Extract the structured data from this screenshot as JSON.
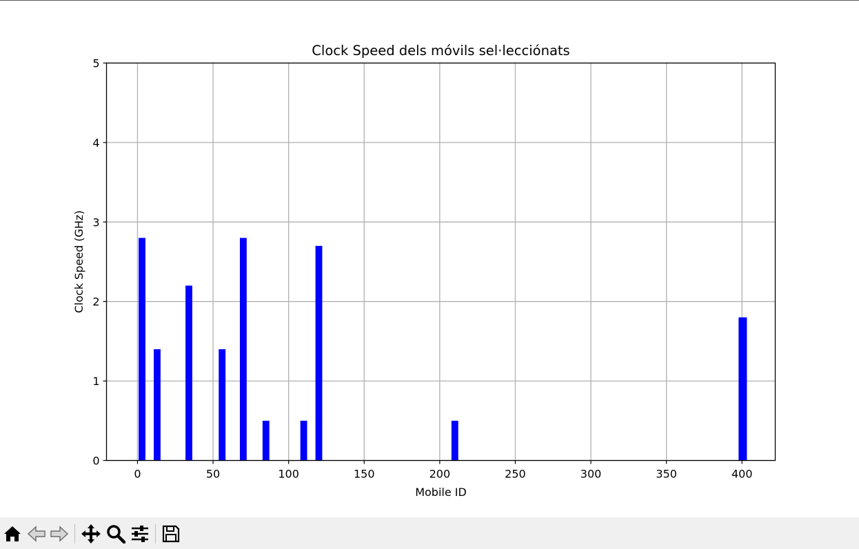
{
  "chart_data": {
    "type": "bar",
    "title": "Clock Speed dels móvils sel·lecciónats",
    "xlabel": "Mobile ID",
    "ylabel": "Clock Speed (GHz)",
    "x": [
      3,
      13,
      34,
      56,
      70,
      85,
      110,
      120,
      210,
      400,
      401
    ],
    "values": [
      2.8,
      1.4,
      2.2,
      1.4,
      2.8,
      0.5,
      0.5,
      2.7,
      0.5,
      1.8,
      1.8
    ],
    "bar_width": 4.5,
    "xlim": [
      -20.5,
      422
    ],
    "ylim": [
      0,
      5
    ],
    "xticks": [
      0,
      50,
      100,
      150,
      200,
      250,
      300,
      350,
      400
    ],
    "yticks": [
      0,
      1,
      2,
      3,
      4,
      5
    ],
    "grid": true,
    "bar_color": "#0000ff",
    "grid_color": "#b0b0b0"
  },
  "toolbar": {
    "buttons": [
      {
        "name": "home-icon"
      },
      {
        "name": "back-icon"
      },
      {
        "name": "forward-icon"
      },
      {
        "name": "pan-icon"
      },
      {
        "name": "zoom-icon"
      },
      {
        "name": "configure-subplots-icon"
      },
      {
        "name": "save-icon"
      }
    ]
  }
}
